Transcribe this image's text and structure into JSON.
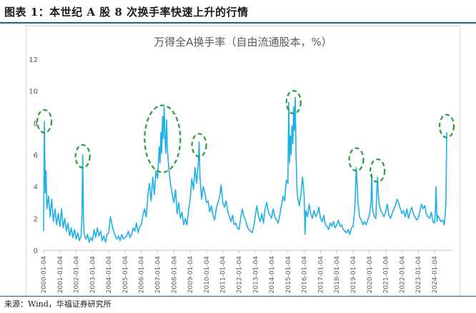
{
  "figure": {
    "title": "图表 1：本世纪 A 股 8 次换手率快速上升的行情",
    "source": "来源：Wind，华福证券研究所"
  },
  "chart_data": {
    "type": "line",
    "title": "万得全A换手率（自由流通股本，%）",
    "xlabel": "",
    "ylabel": "",
    "ylim": [
      0,
      12
    ],
    "yticks": [
      0,
      2,
      4,
      6,
      8,
      10,
      12
    ],
    "grid": false,
    "legend": "none",
    "x_tick_labels": [
      "2000-01-04",
      "2001-01-04",
      "2002-01-04",
      "2003-01-04",
      "2004-01-04",
      "2005-01-04",
      "2006-01-04",
      "2007-01-04",
      "2008-01-04",
      "2009-01-04",
      "2010-01-04",
      "2011-01-04",
      "2012-01-04",
      "2013-01-04",
      "2014-01-04",
      "2015-01-04",
      "2016-01-04",
      "2017-01-04",
      "2018-01-04",
      "2019-01-04",
      "2020-01-04",
      "2021-01-04",
      "2022-01-04",
      "2023-01-04",
      "2024-01-04"
    ],
    "series": [
      {
        "name": "",
        "color": "#1fb0e8",
        "points": [
          [
            2000.0,
            1.2
          ],
          [
            2000.05,
            8.1
          ],
          [
            2000.1,
            3.6
          ],
          [
            2000.15,
            5.0
          ],
          [
            2000.2,
            2.6
          ],
          [
            2000.3,
            3.4
          ],
          [
            2000.4,
            2.1
          ],
          [
            2000.5,
            3.2
          ],
          [
            2000.6,
            1.8
          ],
          [
            2000.7,
            2.6
          ],
          [
            2000.8,
            1.6
          ],
          [
            2000.9,
            2.3
          ],
          [
            2001.0,
            1.5
          ],
          [
            2001.1,
            2.6
          ],
          [
            2001.2,
            1.4
          ],
          [
            2001.3,
            2.0
          ],
          [
            2001.4,
            1.2
          ],
          [
            2001.5,
            1.7
          ],
          [
            2001.6,
            0.9
          ],
          [
            2001.7,
            1.4
          ],
          [
            2001.8,
            0.8
          ],
          [
            2001.9,
            1.3
          ],
          [
            2002.0,
            0.7
          ],
          [
            2002.1,
            1.1
          ],
          [
            2002.2,
            0.6
          ],
          [
            2002.3,
            0.9
          ],
          [
            2002.35,
            2.1
          ],
          [
            2002.4,
            6.0
          ],
          [
            2002.45,
            1.8
          ],
          [
            2002.5,
            1.0
          ],
          [
            2002.6,
            0.7
          ],
          [
            2002.7,
            1.0
          ],
          [
            2002.8,
            0.5
          ],
          [
            2002.9,
            0.8
          ],
          [
            2003.0,
            0.6
          ],
          [
            2003.1,
            1.3
          ],
          [
            2003.2,
            0.8
          ],
          [
            2003.3,
            1.4
          ],
          [
            2003.4,
            0.9
          ],
          [
            2003.5,
            1.2
          ],
          [
            2003.6,
            0.6
          ],
          [
            2003.7,
            0.9
          ],
          [
            2003.8,
            0.5
          ],
          [
            2003.9,
            1.0
          ],
          [
            2004.0,
            1.1
          ],
          [
            2004.1,
            2.1
          ],
          [
            2004.2,
            1.6
          ],
          [
            2004.3,
            1.2
          ],
          [
            2004.4,
            0.9
          ],
          [
            2004.5,
            0.7
          ],
          [
            2004.6,
            0.9
          ],
          [
            2004.7,
            0.6
          ],
          [
            2004.8,
            1.0
          ],
          [
            2004.9,
            0.7
          ],
          [
            2005.0,
            0.8
          ],
          [
            2005.1,
            0.9
          ],
          [
            2005.2,
            1.2
          ],
          [
            2005.3,
            0.8
          ],
          [
            2005.4,
            1.0
          ],
          [
            2005.5,
            1.4
          ],
          [
            2005.6,
            1.2
          ],
          [
            2005.7,
            1.7
          ],
          [
            2005.8,
            1.1
          ],
          [
            2005.9,
            1.5
          ],
          [
            2006.0,
            1.6
          ],
          [
            2006.1,
            2.2
          ],
          [
            2006.2,
            2.6
          ],
          [
            2006.3,
            2.1
          ],
          [
            2006.4,
            3.4
          ],
          [
            2006.5,
            4.2
          ],
          [
            2006.6,
            3.1
          ],
          [
            2006.7,
            4.6
          ],
          [
            2006.8,
            3.5
          ],
          [
            2006.9,
            5.0
          ],
          [
            2007.0,
            4.5
          ],
          [
            2007.1,
            6.5
          ],
          [
            2007.15,
            5.5
          ],
          [
            2007.2,
            7.4
          ],
          [
            2007.25,
            6.1
          ],
          [
            2007.3,
            8.4
          ],
          [
            2007.35,
            7.0
          ],
          [
            2007.4,
            9.0
          ],
          [
            2007.45,
            7.2
          ],
          [
            2007.5,
            6.1
          ],
          [
            2007.55,
            8.2
          ],
          [
            2007.6,
            6.3
          ],
          [
            2007.7,
            5.0
          ],
          [
            2007.8,
            4.1
          ],
          [
            2007.9,
            3.5
          ],
          [
            2008.0,
            3.0
          ],
          [
            2008.1,
            3.8
          ],
          [
            2008.2,
            2.3
          ],
          [
            2008.3,
            3.0
          ],
          [
            2008.4,
            2.0
          ],
          [
            2008.5,
            2.4
          ],
          [
            2008.6,
            1.6
          ],
          [
            2008.7,
            2.0
          ],
          [
            2008.8,
            1.6
          ],
          [
            2008.9,
            2.5
          ],
          [
            2009.0,
            3.2
          ],
          [
            2009.1,
            4.5
          ],
          [
            2009.2,
            3.8
          ],
          [
            2009.3,
            5.2
          ],
          [
            2009.4,
            4.2
          ],
          [
            2009.5,
            5.5
          ],
          [
            2009.55,
            6.8
          ],
          [
            2009.6,
            4.6
          ],
          [
            2009.7,
            3.2
          ],
          [
            2009.8,
            4.0
          ],
          [
            2009.9,
            3.6
          ],
          [
            2010.0,
            3.0
          ],
          [
            2010.1,
            3.1
          ],
          [
            2010.2,
            2.4
          ],
          [
            2010.3,
            2.8
          ],
          [
            2010.4,
            2.2
          ],
          [
            2010.5,
            1.9
          ],
          [
            2010.6,
            2.6
          ],
          [
            2010.7,
            3.0
          ],
          [
            2010.8,
            3.3
          ],
          [
            2010.9,
            4.1
          ],
          [
            2011.0,
            3.0
          ],
          [
            2011.1,
            2.7
          ],
          [
            2011.2,
            3.1
          ],
          [
            2011.3,
            2.5
          ],
          [
            2011.4,
            2.1
          ],
          [
            2011.5,
            1.8
          ],
          [
            2011.6,
            2.2
          ],
          [
            2011.7,
            1.6
          ],
          [
            2011.8,
            1.7
          ],
          [
            2011.9,
            1.4
          ],
          [
            2012.0,
            1.3
          ],
          [
            2012.1,
            2.0
          ],
          [
            2012.2,
            2.6
          ],
          [
            2012.3,
            2.1
          ],
          [
            2012.4,
            1.9
          ],
          [
            2012.5,
            1.5
          ],
          [
            2012.6,
            1.3
          ],
          [
            2012.7,
            1.2
          ],
          [
            2012.8,
            1.1
          ],
          [
            2012.9,
            1.5
          ],
          [
            2013.0,
            2.2
          ],
          [
            2013.1,
            2.8
          ],
          [
            2013.2,
            2.1
          ],
          [
            2013.3,
            1.8
          ],
          [
            2013.4,
            2.3
          ],
          [
            2013.5,
            1.7
          ],
          [
            2013.6,
            2.6
          ],
          [
            2013.7,
            3.0
          ],
          [
            2013.8,
            2.4
          ],
          [
            2013.9,
            2.2
          ],
          [
            2014.0,
            2.0
          ],
          [
            2014.1,
            2.6
          ],
          [
            2014.2,
            2.1
          ],
          [
            2014.3,
            1.9
          ],
          [
            2014.4,
            1.7
          ],
          [
            2014.5,
            2.2
          ],
          [
            2014.6,
            2.8
          ],
          [
            2014.7,
            3.4
          ],
          [
            2014.8,
            3.1
          ],
          [
            2014.9,
            4.4
          ],
          [
            2015.0,
            4.2
          ],
          [
            2015.05,
            9.3
          ],
          [
            2015.1,
            5.5
          ],
          [
            2015.15,
            7.2
          ],
          [
            2015.2,
            6.0
          ],
          [
            2015.25,
            7.8
          ],
          [
            2015.3,
            6.7
          ],
          [
            2015.35,
            9.0
          ],
          [
            2015.4,
            7.5
          ],
          [
            2015.45,
            9.6
          ],
          [
            2015.5,
            6.0
          ],
          [
            2015.55,
            4.0
          ],
          [
            2015.6,
            3.3
          ],
          [
            2015.7,
            2.8
          ],
          [
            2015.8,
            3.5
          ],
          [
            2015.9,
            4.6
          ],
          [
            2016.0,
            3.4
          ],
          [
            2016.05,
            1.0
          ],
          [
            2016.1,
            2.5
          ],
          [
            2016.2,
            2.1
          ],
          [
            2016.3,
            2.9
          ],
          [
            2016.4,
            2.3
          ],
          [
            2016.5,
            2.0
          ],
          [
            2016.6,
            2.5
          ],
          [
            2016.7,
            2.1
          ],
          [
            2016.8,
            2.3
          ],
          [
            2016.9,
            2.7
          ],
          [
            2017.0,
            2.0
          ],
          [
            2017.1,
            1.8
          ],
          [
            2017.2,
            2.2
          ],
          [
            2017.3,
            1.6
          ],
          [
            2017.4,
            1.5
          ],
          [
            2017.5,
            1.3
          ],
          [
            2017.6,
            1.7
          ],
          [
            2017.7,
            1.5
          ],
          [
            2017.8,
            1.8
          ],
          [
            2017.9,
            1.4
          ],
          [
            2018.0,
            1.6
          ],
          [
            2018.1,
            1.9
          ],
          [
            2018.2,
            1.5
          ],
          [
            2018.3,
            1.6
          ],
          [
            2018.4,
            1.3
          ],
          [
            2018.5,
            1.2
          ],
          [
            2018.6,
            1.1
          ],
          [
            2018.7,
            1.3
          ],
          [
            2018.8,
            1.0
          ],
          [
            2018.9,
            1.4
          ],
          [
            2019.0,
            1.5
          ],
          [
            2019.1,
            2.5
          ],
          [
            2019.15,
            3.8
          ],
          [
            2019.2,
            5.2
          ],
          [
            2019.25,
            4.2
          ],
          [
            2019.3,
            3.0
          ],
          [
            2019.4,
            2.1
          ],
          [
            2019.5,
            1.9
          ],
          [
            2019.6,
            1.6
          ],
          [
            2019.7,
            1.8
          ],
          [
            2019.8,
            1.6
          ],
          [
            2019.9,
            1.9
          ],
          [
            2020.0,
            2.2
          ],
          [
            2020.1,
            3.0
          ],
          [
            2020.15,
            4.8
          ],
          [
            2020.2,
            2.6
          ],
          [
            2020.3,
            2.1
          ],
          [
            2020.4,
            2.0
          ],
          [
            2020.45,
            3.6
          ],
          [
            2020.5,
            4.6
          ],
          [
            2020.55,
            3.5
          ],
          [
            2020.6,
            2.9
          ],
          [
            2020.7,
            2.5
          ],
          [
            2020.8,
            2.3
          ],
          [
            2020.9,
            2.1
          ],
          [
            2021.0,
            2.4
          ],
          [
            2021.1,
            2.9
          ],
          [
            2021.2,
            2.2
          ],
          [
            2021.3,
            2.0
          ],
          [
            2021.4,
            2.3
          ],
          [
            2021.5,
            2.6
          ],
          [
            2021.6,
            2.8
          ],
          [
            2021.7,
            3.2
          ],
          [
            2021.8,
            3.0
          ],
          [
            2021.9,
            2.6
          ],
          [
            2022.0,
            2.3
          ],
          [
            2022.1,
            2.5
          ],
          [
            2022.2,
            2.1
          ],
          [
            2022.3,
            2.6
          ],
          [
            2022.4,
            2.0
          ],
          [
            2022.5,
            2.4
          ],
          [
            2022.6,
            2.7
          ],
          [
            2022.7,
            2.3
          ],
          [
            2022.8,
            2.1
          ],
          [
            2022.9,
            1.9
          ],
          [
            2023.0,
            2.0
          ],
          [
            2023.1,
            2.4
          ],
          [
            2023.2,
            2.9
          ],
          [
            2023.3,
            2.6
          ],
          [
            2023.4,
            2.8
          ],
          [
            2023.5,
            2.3
          ],
          [
            2023.6,
            2.1
          ],
          [
            2023.7,
            2.0
          ],
          [
            2023.8,
            2.4
          ],
          [
            2023.9,
            1.8
          ],
          [
            2024.0,
            1.7
          ],
          [
            2024.05,
            2.4
          ],
          [
            2024.1,
            4.0
          ],
          [
            2024.15,
            1.8
          ],
          [
            2024.2,
            2.2
          ],
          [
            2024.3,
            2.0
          ],
          [
            2024.4,
            1.8
          ],
          [
            2024.5,
            1.9
          ],
          [
            2024.6,
            1.6
          ],
          [
            2024.65,
            2.2
          ],
          [
            2024.7,
            2.9
          ],
          [
            2024.75,
            7.4
          ]
        ]
      }
    ],
    "annotations": {
      "style": "green dashed ellipses marking 8 turnover surges",
      "color": "#22a03a",
      "highlights": [
        {
          "x": 2000.05,
          "y": 8.1
        },
        {
          "x": 2002.4,
          "y": 5.9
        },
        {
          "x": 2007.3,
          "y": 7.0
        },
        {
          "x": 2009.55,
          "y": 6.6
        },
        {
          "x": 2015.35,
          "y": 9.3
        },
        {
          "x": 2019.2,
          "y": 5.7
        },
        {
          "x": 2020.5,
          "y": 5.0
        },
        {
          "x": 2024.75,
          "y": 7.8
        }
      ]
    }
  }
}
